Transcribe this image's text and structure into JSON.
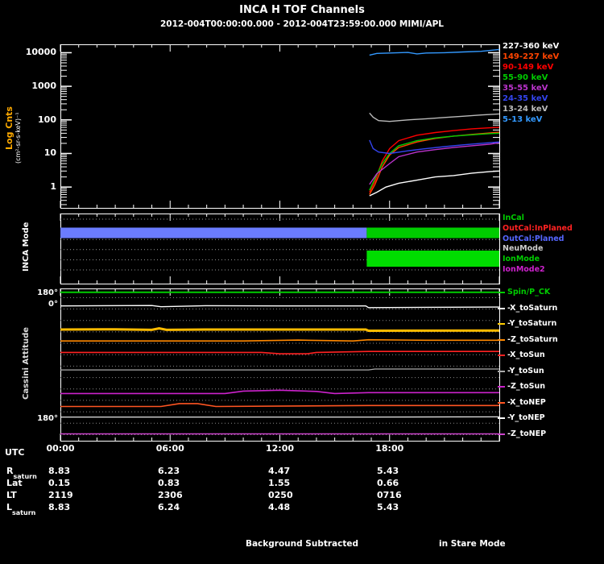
{
  "title": "INCA H TOF Channels",
  "subtitle": "2012-004T00:00:00.000 - 2012-004T23:59:00.000 MIMI/APL",
  "panels": {
    "tof": {
      "ylabel_main": "Log Cnts",
      "ylabel_units": "(cm²-sr-s-keV)⁻¹",
      "yticks": [
        "1",
        "10",
        "100",
        "1000",
        "10000"
      ]
    },
    "mode": {
      "axis_label": "INCA Mode"
    },
    "attitude": {
      "axis_label": "Cassini Attitude",
      "yticks": [
        {
          "label": "180°",
          "frac": 0.03
        },
        {
          "label": "0°",
          "frac": 0.105
        },
        {
          "label": "180°",
          "frac": 0.855
        }
      ]
    }
  },
  "xaxis": {
    "label": "UTC",
    "ticks": [
      {
        "hour": 0,
        "label": "00:00"
      },
      {
        "hour": 6,
        "label": "06:00"
      },
      {
        "hour": 12,
        "label": "12:00"
      },
      {
        "hour": 18,
        "label": "18:00"
      }
    ]
  },
  "ephemeris": {
    "rows": [
      {
        "label": "R",
        "sub": "saturn",
        "values": [
          "8.83",
          "6.23",
          "4.47",
          "5.43"
        ]
      },
      {
        "label": "Lat",
        "sub": "",
        "values": [
          "0.15",
          "0.83",
          "1.55",
          "0.66"
        ]
      },
      {
        "label": "LT",
        "sub": "",
        "values": [
          "2119",
          "2306",
          "0250",
          "0716"
        ]
      },
      {
        "label": "L",
        "sub": "saturn",
        "values": [
          "8.83",
          "6.24",
          "4.48",
          "5.43"
        ]
      }
    ]
  },
  "footer": {
    "center": "Background Subtracted",
    "right": "in Stare Mode"
  },
  "chart_data": [
    {
      "type": "line",
      "yscale": "log",
      "title": "INCA H TOF Channels",
      "ylabel": "Log Cnts (cm²-sr-s-keV)⁻¹",
      "x_range_hours": [
        0,
        24
      ],
      "y_range": [
        0.24,
        17000
      ],
      "legend_position": "right",
      "legend": [
        {
          "label": "227-360 keV",
          "color": "#ffffff"
        },
        {
          "label": "149-227 keV",
          "color": "#ff4400"
        },
        {
          "label": "90-149 keV",
          "color": "#ff0000"
        },
        {
          "label": "55-90 keV",
          "color": "#00cc00"
        },
        {
          "label": "35-55 keV",
          "color": "#bb33cc"
        },
        {
          "label": "24-35 keV",
          "color": "#3344ee"
        },
        {
          "label": "13-24 keV",
          "color": "#bbbbbb"
        },
        {
          "label": "5-13 keV",
          "color": "#3399ff"
        }
      ],
      "series": [
        {
          "name": "227-360 keV",
          "color": "#ffffff",
          "points": [
            [
              16.9,
              0.55
            ],
            [
              17.3,
              0.7
            ],
            [
              17.8,
              1.0
            ],
            [
              18.5,
              1.3
            ],
            [
              19.5,
              1.6
            ],
            [
              20.5,
              2.0
            ],
            [
              21.5,
              2.2
            ],
            [
              22.5,
              2.6
            ],
            [
              23.5,
              2.9
            ],
            [
              24,
              3.0
            ]
          ]
        },
        {
          "name": "149-227 keV",
          "color": "#ff4400",
          "points": [
            [
              16.9,
              0.6
            ],
            [
              17.2,
              1.2
            ],
            [
              17.6,
              4
            ],
            [
              18,
              9
            ],
            [
              18.5,
              15
            ],
            [
              19.5,
              22
            ],
            [
              20.5,
              28
            ],
            [
              21.5,
              33
            ],
            [
              22.5,
              37
            ],
            [
              23.5,
              41
            ],
            [
              24,
              43
            ]
          ]
        },
        {
          "name": "90-149 keV",
          "color": "#ff0000",
          "points": [
            [
              16.9,
              0.7
            ],
            [
              17.2,
              1.5
            ],
            [
              17.6,
              6
            ],
            [
              18,
              14
            ],
            [
              18.5,
              24
            ],
            [
              19.5,
              35
            ],
            [
              20.5,
              42
            ],
            [
              21.5,
              48
            ],
            [
              22.5,
              54
            ],
            [
              23.5,
              58
            ],
            [
              24,
              60
            ]
          ]
        },
        {
          "name": "55-90 keV",
          "color": "#00cc00",
          "points": [
            [
              16.9,
              0.8
            ],
            [
              17.2,
              1.8
            ],
            [
              17.6,
              5
            ],
            [
              18,
              10
            ],
            [
              18.5,
              17
            ],
            [
              19.5,
              24
            ],
            [
              20.5,
              29
            ],
            [
              21.5,
              33
            ],
            [
              22.5,
              36
            ],
            [
              23.5,
              39
            ],
            [
              24,
              40
            ]
          ]
        },
        {
          "name": "35-55 keV",
          "color": "#bb33cc",
          "points": [
            [
              16.9,
              1.2
            ],
            [
              17.3,
              2.5
            ],
            [
              18,
              5
            ],
            [
              18.5,
              8
            ],
            [
              19.5,
              11
            ],
            [
              20.5,
              13
            ],
            [
              21.5,
              15
            ],
            [
              22.5,
              17
            ],
            [
              23.5,
              19
            ],
            [
              24,
              21
            ]
          ]
        },
        {
          "name": "24-35 keV",
          "color": "#3344ee",
          "points": [
            [
              16.9,
              25
            ],
            [
              17.1,
              14
            ],
            [
              17.4,
              11
            ],
            [
              18,
              10
            ],
            [
              19,
              12
            ],
            [
              20,
              14
            ],
            [
              21,
              16
            ],
            [
              22,
              18
            ],
            [
              23,
              20
            ],
            [
              24,
              22
            ]
          ]
        },
        {
          "name": "13-24 keV",
          "color": "#bbbbbb",
          "points": [
            [
              16.9,
              160
            ],
            [
              17.1,
              120
            ],
            [
              17.4,
              95
            ],
            [
              18,
              90
            ],
            [
              19,
              100
            ],
            [
              20,
              108
            ],
            [
              21,
              118
            ],
            [
              22,
              128
            ],
            [
              23,
              140
            ],
            [
              24,
              150
            ]
          ]
        },
        {
          "name": "5-13 keV",
          "color": "#3399ff",
          "points": [
            [
              16.9,
              8500
            ],
            [
              17.3,
              9500
            ],
            [
              18,
              9800
            ],
            [
              19,
              10200
            ],
            [
              19.5,
              9200
            ],
            [
              20,
              9800
            ],
            [
              21,
              10000
            ],
            [
              22,
              10500
            ],
            [
              23,
              11000
            ],
            [
              24,
              12500
            ]
          ]
        }
      ]
    },
    {
      "type": "timeline",
      "label": "INCA Mode",
      "legend": [
        {
          "label": "InCal",
          "color": "#00cc00"
        },
        {
          "label": "OutCal:InPlaned",
          "color": "#ff2222"
        },
        {
          "label": "OutCal:Planed",
          "color": "#5566ff"
        },
        {
          "label": "NeuMode",
          "color": "#cccccc"
        },
        {
          "label": "IonMode",
          "color": "#00cc00"
        },
        {
          "label": "IonMode2",
          "color": "#cc22cc"
        }
      ],
      "guide_rows": [
        0.08,
        0.225,
        0.37,
        0.515,
        0.66,
        0.805
      ],
      "bars": [
        {
          "mode": "OutCal:Planed",
          "color": "#6b7cfe",
          "t0": 0,
          "t1": 16.75,
          "y_frac": 0.276,
          "h_frac": 0.15
        },
        {
          "mode": "InCal",
          "color": "#00cc00",
          "t0": 16.75,
          "t1": 24,
          "y_frac": 0.276,
          "h_frac": 0.15
        },
        {
          "mode": "IonMode",
          "color": "#00dd00",
          "t0": 16.75,
          "t1": 24,
          "y_frac": 0.644,
          "h_frac": 0.23
        }
      ]
    },
    {
      "type": "line",
      "label": "Cassini Attitude",
      "x_range_hours": [
        0,
        24
      ],
      "legend": [
        {
          "label": "Spin/P_CK",
          "color": "#00cc00",
          "text": "#00cc00"
        },
        {
          "label": "-X_toSaturn",
          "color": "#ffffff",
          "text": "#ffffff"
        },
        {
          "label": "-Y_toSaturn",
          "color": "#ffcc00",
          "text": "#ffffff"
        },
        {
          "label": "-Z_toSaturn",
          "color": "#ff8800",
          "text": "#ffffff"
        },
        {
          "label": "-X_toSun",
          "color": "#ff2222",
          "text": "#ffffff"
        },
        {
          "label": "-Y_toSun",
          "color": "#aaaaaa",
          "text": "#ffffff"
        },
        {
          "label": "-Z_toSun",
          "color": "#cc22cc",
          "text": "#ffffff"
        },
        {
          "label": "-X_toNEP",
          "color": "#ff5522",
          "text": "#ffffff"
        },
        {
          "label": "-Y_toNEP",
          "color": "#ffffff",
          "text": "#ffffff"
        },
        {
          "label": "-Z_toNEP",
          "color": "#cc44cc",
          "text": "#ffffff"
        }
      ],
      "guide_rows": [
        0.06,
        0.135,
        0.21,
        0.285,
        0.36,
        0.435,
        0.51,
        0.585,
        0.66,
        0.735,
        0.81,
        0.885,
        0.96
      ],
      "series": [
        {
          "name": "Spin/P_CK",
          "color": "#00cc00",
          "width": 2,
          "points": [
            [
              0,
              0.025
            ],
            [
              24,
              0.025
            ]
          ]
        },
        {
          "name": "-X_toSaturn",
          "color": "#ffffff",
          "width": 1.4,
          "points": [
            [
              0,
              0.115
            ],
            [
              5,
              0.112
            ],
            [
              5.5,
              0.12
            ],
            [
              8,
              0.113
            ],
            [
              12,
              0.115
            ],
            [
              16.7,
              0.115
            ],
            [
              16.85,
              0.126
            ],
            [
              20,
              0.124
            ],
            [
              24,
              0.122
            ]
          ]
        },
        {
          "name": "-Y_toSaturn",
          "color": "#ffbb00",
          "width": 3,
          "points": [
            [
              0,
              0.27
            ],
            [
              3,
              0.268
            ],
            [
              5,
              0.272
            ],
            [
              5.4,
              0.262
            ],
            [
              5.8,
              0.272
            ],
            [
              8,
              0.27
            ],
            [
              12,
              0.27
            ],
            [
              16.7,
              0.27
            ],
            [
              16.85,
              0.278
            ],
            [
              24,
              0.276
            ]
          ]
        },
        {
          "name": "-Z_toSaturn",
          "color": "#ff8800",
          "width": 1.6,
          "points": [
            [
              0,
              0.345
            ],
            [
              10,
              0.345
            ],
            [
              13,
              0.339
            ],
            [
              16,
              0.345
            ],
            [
              16.85,
              0.337
            ],
            [
              20,
              0.34
            ],
            [
              24,
              0.34
            ]
          ]
        },
        {
          "name": "-X_toSun",
          "color": "#ff2222",
          "width": 1.6,
          "points": [
            [
              0,
              0.42
            ],
            [
              11,
              0.42
            ],
            [
              12,
              0.429
            ],
            [
              13.5,
              0.429
            ],
            [
              14,
              0.42
            ],
            [
              16.85,
              0.414
            ],
            [
              24,
              0.414
            ]
          ]
        },
        {
          "name": "-Y_toSun",
          "color": "#aaaaaa",
          "width": 1.2,
          "points": [
            [
              0,
              0.535
            ],
            [
              16.85,
              0.535
            ],
            [
              17.2,
              0.529
            ],
            [
              24,
              0.529
            ]
          ]
        },
        {
          "name": "-Z_toSun",
          "color": "#cc22cc",
          "width": 1.6,
          "points": [
            [
              0,
              0.69
            ],
            [
              9,
              0.69
            ],
            [
              10,
              0.674
            ],
            [
              12,
              0.668
            ],
            [
              14,
              0.676
            ],
            [
              15,
              0.69
            ],
            [
              16.85,
              0.684
            ],
            [
              24,
              0.684
            ]
          ]
        },
        {
          "name": "-X_toNEP",
          "color": "#ff5522",
          "width": 1.6,
          "points": [
            [
              0,
              0.775
            ],
            [
              5.5,
              0.775
            ],
            [
              6.5,
              0.756
            ],
            [
              7.5,
              0.756
            ],
            [
              8.5,
              0.775
            ],
            [
              16.85,
              0.769
            ],
            [
              24,
              0.769
            ]
          ]
        },
        {
          "name": "-Y_toNEP",
          "color": "#ffffff",
          "width": 1.2,
          "points": [
            [
              0,
              0.845
            ],
            [
              16.85,
              0.845
            ],
            [
              24,
              0.843
            ]
          ]
        },
        {
          "name": "-Z_toNEP",
          "color": "#cc44cc",
          "width": 1.6,
          "points": [
            [
              0,
              0.955
            ],
            [
              24,
              0.955
            ]
          ]
        }
      ]
    }
  ]
}
